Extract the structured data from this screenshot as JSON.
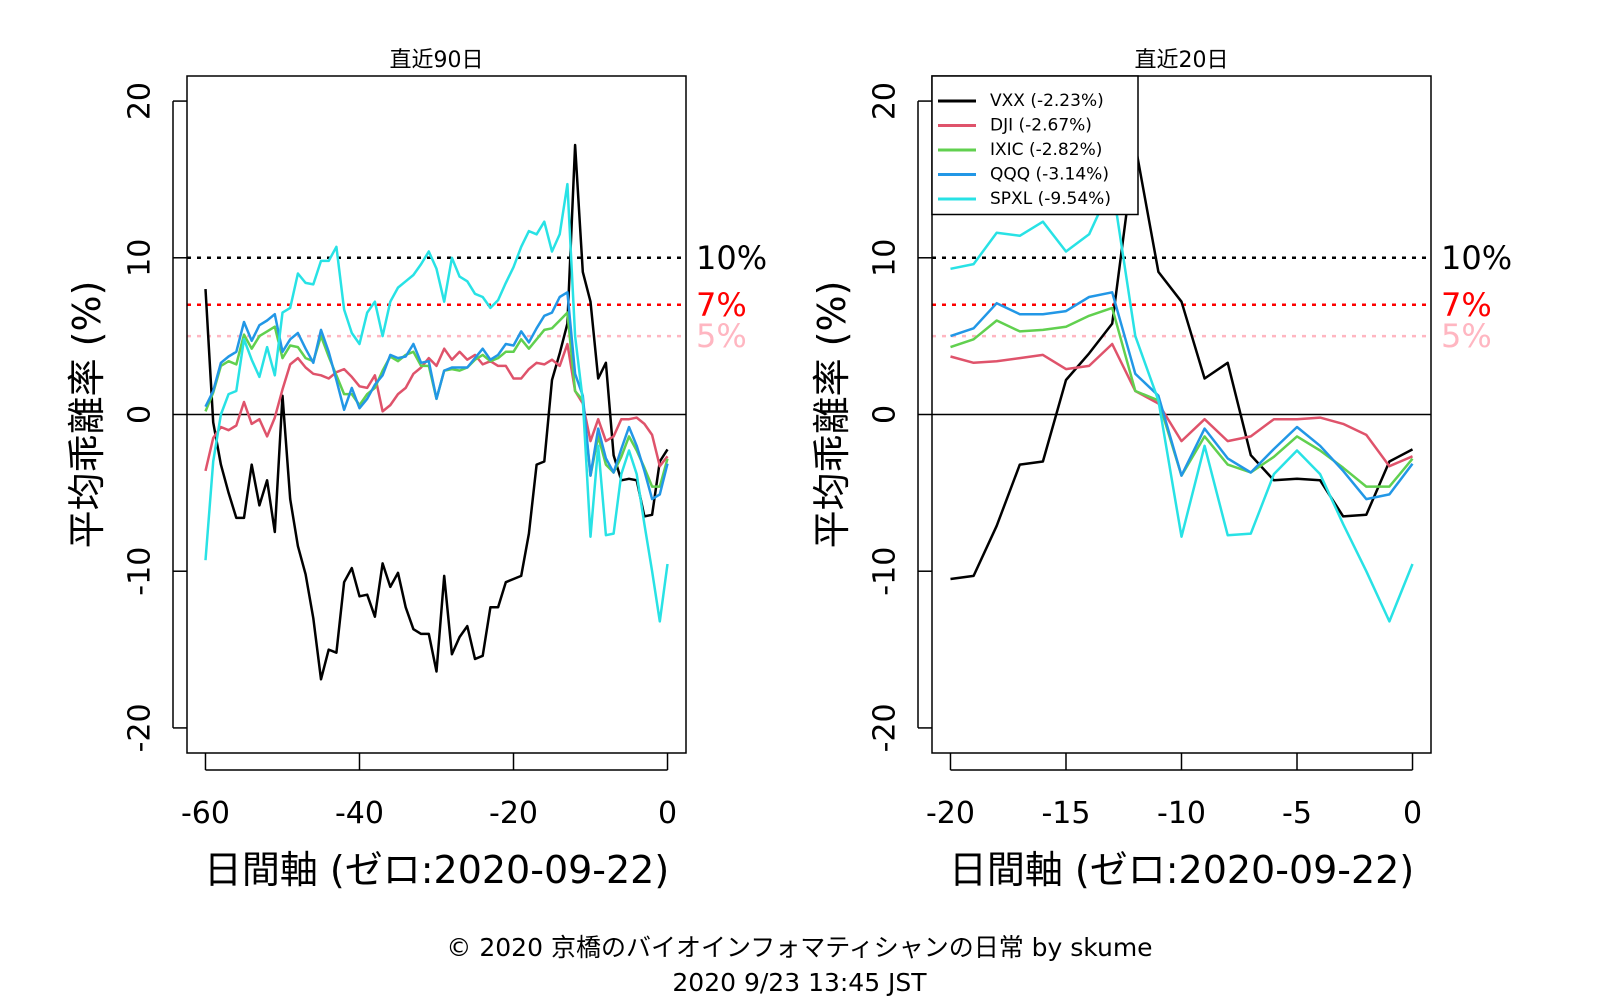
{
  "footer": {
    "copyright": "© 2020 京橋のバイオインフォマティシャンの日常 by skume",
    "timestamp": "2020 9/23 13:45 JST"
  },
  "chart_data": [
    {
      "type": "line",
      "title": "直近90日",
      "xlabel": "日間軸 (ゼロ:2020-09-22)",
      "ylabel": "平均乖離率 (%)",
      "xlim": [
        -60,
        0
      ],
      "ylim": [
        -20,
        20
      ],
      "xticks": [
        -60,
        -40,
        -20,
        0
      ],
      "yticks": [
        -20,
        -10,
        0,
        10,
        20
      ],
      "reference_lines": [
        {
          "y": 10,
          "label": "10%",
          "color": "#000000",
          "label_color": "#000000"
        },
        {
          "y": 7,
          "label": "7%",
          "color": "#ff0000",
          "label_color": "#ff0000"
        },
        {
          "y": 5,
          "label": "5%",
          "color": "#ffb6c1",
          "label_color": "#ffb6c1"
        }
      ],
      "zero_line": 0,
      "x": [
        -60,
        -59,
        -58,
        -57,
        -56,
        -55,
        -54,
        -53,
        -52,
        -51,
        -50,
        -49,
        -48,
        -47,
        -46,
        -45,
        -44,
        -43,
        -42,
        -41,
        -40,
        -39,
        -38,
        -37,
        -36,
        -35,
        -34,
        -33,
        -32,
        -31,
        -30,
        -29,
        -28,
        -27,
        -26,
        -25,
        -24,
        -23,
        -22,
        -21,
        -20,
        -19,
        -18,
        -17,
        -16,
        -15,
        -14,
        -13,
        -12,
        -11,
        -10,
        -9,
        -8,
        -7,
        -6,
        -5,
        -4,
        -3,
        -2,
        -1,
        0
      ],
      "series": [
        {
          "name": "VXX",
          "color": "#000000",
          "values": [
            8.0,
            -0.5,
            -3.2,
            -5.0,
            -6.6,
            -6.6,
            -3.2,
            -5.8,
            -4.2,
            -7.5,
            1.2,
            -5.4,
            -8.4,
            -10.2,
            -13.0,
            -16.9,
            -15.0,
            -15.2,
            -10.7,
            -9.8,
            -11.6,
            -11.5,
            -12.9,
            -9.5,
            -11.0,
            -10.1,
            -12.3,
            -13.7,
            -14.0,
            -14.0,
            -16.4,
            -10.3,
            -15.3,
            -14.2,
            -13.5,
            -15.6,
            -15.4,
            -12.3,
            -12.3,
            -10.7,
            -10.5,
            -10.3,
            -7.6,
            -3.2,
            -3.0,
            2.2,
            3.9,
            5.8,
            17.2,
            9.1,
            7.2,
            2.3,
            3.3,
            -2.6,
            -4.2,
            -4.1,
            -4.2,
            -6.5,
            -6.4,
            -3.0,
            -2.23
          ]
        },
        {
          "name": "DJI",
          "color": "#df536b",
          "values": [
            -3.6,
            -1.5,
            -0.8,
            -1.0,
            -0.7,
            0.8,
            -0.6,
            -0.3,
            -1.4,
            -0.2,
            1.6,
            3.2,
            3.6,
            3.0,
            2.6,
            2.5,
            2.3,
            2.7,
            2.9,
            2.4,
            1.8,
            1.7,
            2.5,
            0.2,
            0.6,
            1.3,
            1.7,
            2.6,
            3.0,
            3.6,
            3.1,
            4.2,
            3.5,
            4.0,
            3.5,
            3.8,
            3.2,
            3.4,
            3.1,
            3.1,
            2.3,
            2.3,
            2.9,
            3.3,
            3.2,
            3.5,
            3.1,
            4.5,
            1.5,
            0.7,
            -1.7,
            -0.3,
            -1.7,
            -1.4,
            -0.3,
            -0.3,
            -0.2,
            -0.6,
            -1.3,
            -3.3,
            -2.67
          ]
        },
        {
          "name": "IXIC",
          "color": "#61d04f",
          "values": [
            0.2,
            1.4,
            3.1,
            3.4,
            3.2,
            5.1,
            4.2,
            5.0,
            5.3,
            5.6,
            3.6,
            4.4,
            4.3,
            3.6,
            3.4,
            5.0,
            3.7,
            2.5,
            1.3,
            1.3,
            0.6,
            1.3,
            1.7,
            2.8,
            3.7,
            3.4,
            3.8,
            4.0,
            3.1,
            3.1,
            1.0,
            2.8,
            2.9,
            2.8,
            3.0,
            3.5,
            3.8,
            3.4,
            3.6,
            4.0,
            4.0,
            4.8,
            4.2,
            4.8,
            5.4,
            5.5,
            6.0,
            6.5,
            1.5,
            0.9,
            -3.9,
            -1.4,
            -3.2,
            -3.7,
            -2.7,
            -1.4,
            -2.3,
            -3.4,
            -4.6,
            -4.6,
            -2.82
          ]
        },
        {
          "name": "QQQ",
          "color": "#2297e6",
          "values": [
            0.5,
            1.5,
            3.3,
            3.7,
            4.0,
            5.9,
            4.7,
            5.7,
            6.0,
            6.4,
            4.0,
            4.8,
            5.2,
            4.2,
            3.3,
            5.4,
            4.0,
            2.2,
            0.3,
            1.7,
            0.4,
            1.0,
            1.9,
            2.5,
            3.8,
            3.6,
            3.7,
            4.5,
            3.3,
            3.4,
            1.0,
            2.8,
            3.0,
            3.0,
            3.0,
            3.6,
            4.2,
            3.5,
            3.8,
            4.5,
            4.4,
            5.3,
            4.6,
            5.5,
            6.3,
            6.5,
            7.5,
            7.8,
            2.6,
            1.2,
            -3.9,
            -0.9,
            -2.8,
            -3.7,
            -2.2,
            -0.8,
            -2.0,
            -3.6,
            -5.4,
            -5.1,
            -3.14
          ]
        },
        {
          "name": "SPXL",
          "color": "#28e2e5",
          "values": [
            -9.3,
            -3.0,
            0.0,
            1.3,
            1.5,
            4.8,
            3.5,
            2.4,
            4.3,
            2.5,
            6.5,
            6.8,
            9.0,
            8.4,
            8.3,
            9.8,
            9.8,
            10.7,
            6.7,
            5.2,
            4.5,
            6.5,
            7.2,
            5.0,
            7.2,
            8.1,
            8.5,
            8.9,
            9.6,
            10.4,
            9.3,
            7.2,
            10.0,
            8.8,
            8.5,
            7.7,
            7.5,
            6.8,
            7.3,
            8.4,
            9.4,
            10.7,
            11.7,
            11.5,
            12.3,
            10.4,
            11.5,
            14.7,
            5.0,
            0.9,
            -7.8,
            -2.0,
            -7.7,
            -7.6,
            -3.8,
            -2.3,
            -3.8,
            -7.0,
            -10.0,
            -13.2,
            -9.54
          ]
        }
      ]
    },
    {
      "type": "line",
      "title": "直近20日",
      "xlabel": "日間軸 (ゼロ:2020-09-22)",
      "ylabel": "平均乖離率 (%)",
      "xlim": [
        -20,
        0
      ],
      "ylim": [
        -20,
        20
      ],
      "xticks": [
        -20,
        -15,
        -10,
        -5,
        0
      ],
      "yticks": [
        -20,
        -10,
        0,
        10,
        20
      ],
      "legend_position": "top-left",
      "reference_lines": [
        {
          "y": 10,
          "label": "10%",
          "color": "#000000",
          "label_color": "#000000"
        },
        {
          "y": 7,
          "label": "7%",
          "color": "#ff0000",
          "label_color": "#ff0000"
        },
        {
          "y": 5,
          "label": "5%",
          "color": "#ffb6c1",
          "label_color": "#ffb6c1"
        }
      ],
      "zero_line": 0,
      "x": [
        -20,
        -19,
        -18,
        -17,
        -16,
        -15,
        -14,
        -13,
        -12,
        -11,
        -10,
        -9,
        -8,
        -7,
        -6,
        -5,
        -4,
        -3,
        -2,
        -1,
        0
      ],
      "series": [
        {
          "name": "VXX",
          "legend": "VXX (-2.23%)",
          "color": "#000000",
          "values": [
            -10.5,
            -10.3,
            -7.1,
            -3.2,
            -3.0,
            2.2,
            3.9,
            5.8,
            17.2,
            9.1,
            7.2,
            2.3,
            3.3,
            -2.6,
            -4.2,
            -4.1,
            -4.2,
            -6.5,
            -6.4,
            -3.0,
            -2.23
          ]
        },
        {
          "name": "DJI",
          "legend": "DJI (-2.67%)",
          "color": "#df536b",
          "values": [
            3.7,
            3.3,
            3.4,
            3.6,
            3.8,
            2.9,
            3.1,
            4.5,
            1.5,
            0.7,
            -1.7,
            -0.3,
            -1.7,
            -1.4,
            -0.3,
            -0.3,
            -0.2,
            -0.6,
            -1.3,
            -3.3,
            -2.67
          ]
        },
        {
          "name": "IXIC",
          "legend": "IXIC (-2.82%)",
          "color": "#61d04f",
          "values": [
            4.3,
            4.8,
            6.0,
            5.3,
            5.4,
            5.6,
            6.3,
            6.8,
            1.5,
            0.9,
            -3.9,
            -1.4,
            -3.2,
            -3.7,
            -2.7,
            -1.4,
            -2.3,
            -3.4,
            -4.6,
            -4.6,
            -2.82
          ]
        },
        {
          "name": "QQQ",
          "legend": "QQQ (-3.14%)",
          "color": "#2297e6",
          "values": [
            5.0,
            5.5,
            7.1,
            6.4,
            6.4,
            6.6,
            7.5,
            7.8,
            2.6,
            1.2,
            -3.9,
            -0.9,
            -2.8,
            -3.7,
            -2.2,
            -0.8,
            -2.0,
            -3.6,
            -5.4,
            -5.1,
            -3.14
          ]
        },
        {
          "name": "SPXL",
          "legend": "SPXL (-9.54%)",
          "color": "#28e2e5",
          "values": [
            9.3,
            9.6,
            11.6,
            11.4,
            12.3,
            10.4,
            11.5,
            14.7,
            5.0,
            0.9,
            -7.8,
            -2.0,
            -7.7,
            -7.6,
            -3.8,
            -2.3,
            -3.8,
            -7.0,
            -10.0,
            -13.2,
            -9.54
          ]
        }
      ]
    }
  ]
}
